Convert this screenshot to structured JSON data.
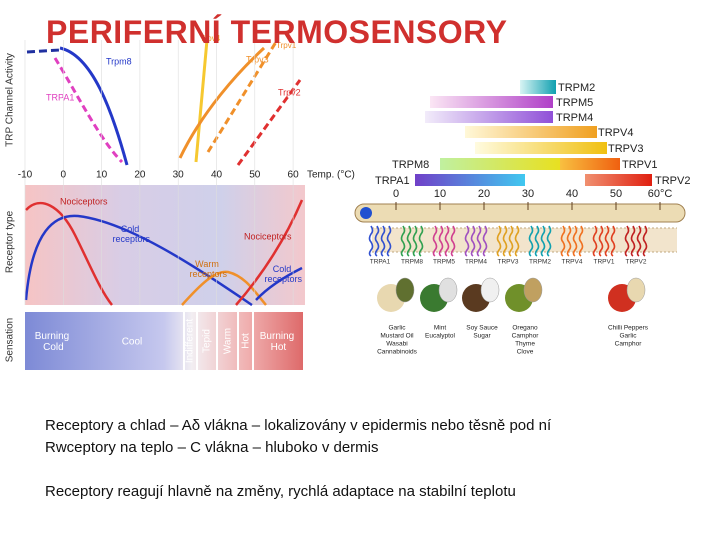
{
  "title": "PERIFERNÍ TERMOSENSORY",
  "left_figure": {
    "panel_labels": [
      "TRP Channel Activity",
      "Receptor type",
      "Sensation"
    ],
    "channels": [
      "Trpv4",
      "Trpv1",
      "Trpm8",
      "Trpv3",
      "TRPA1",
      "Trpv2"
    ],
    "x_ticks": [
      "-10",
      "0",
      "10",
      "20",
      "30",
      "40",
      "50",
      "60"
    ],
    "x_label": "Temp. (°C)",
    "receptors": [
      "Nociceptors",
      "Cold receptors",
      "Warm receptors",
      "Nociceptors",
      "Cold receptors"
    ],
    "sensations": [
      "Burning Cold",
      "Cool",
      "Indifferent",
      "Tepid",
      "Warm",
      "Hot",
      "Burning Hot"
    ]
  },
  "right_figure": {
    "bars": [
      "TRPM2",
      "TRPM5",
      "TRPM4",
      "TRPV4",
      "TRPV3",
      "TRPM8",
      "TRPV1",
      "TRPA1",
      "TRPV2"
    ],
    "scale": [
      "0",
      "10",
      "20",
      "30",
      "40",
      "50",
      "60°C"
    ],
    "channels": [
      "TRPA1",
      "TRPM8",
      "TRPM5",
      "TRPM4",
      "TRPV3",
      "TRPM2",
      "TRPV4",
      "TRPV1",
      "TRPV2"
    ],
    "agonists": [
      [
        "Garlic",
        "Mustard Oil",
        "Wasabi",
        "Cannabinoids"
      ],
      [
        "Mint",
        "Eucalyptol"
      ],
      [
        "Soy Sauce",
        "Sugar"
      ],
      [
        "Oregano",
        "Camphor",
        "Thyme",
        "Clove"
      ],
      [
        "Chilli Peppers",
        "Garlic",
        "Camphor"
      ]
    ]
  },
  "text": [
    "Receptory a chlad – Aδ vlákna – lokalizovány v epidermis nebo těsně pod ní",
    "Rwceptory na teplo – C vlákna – hluboko v dermis",
    "Receptory reagují hlavně na změny, rychlá adaptace na stabilní teplotu"
  ]
}
